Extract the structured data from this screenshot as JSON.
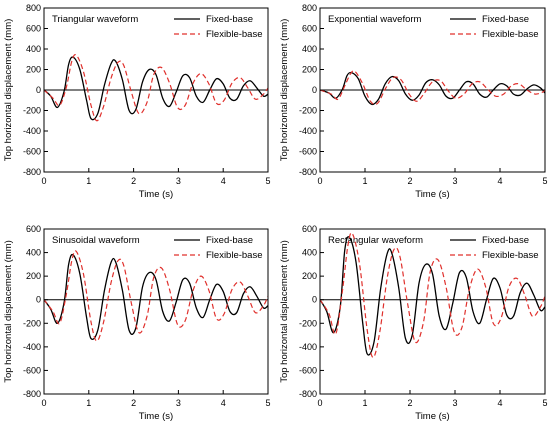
{
  "chart_data": [
    {
      "type": "line",
      "panel": "top-left",
      "annotation": "Triangular waveform",
      "xlabel": "Time (s)",
      "ylabel": "Top horizontal displacement (mm)",
      "xlim": [
        0,
        5
      ],
      "ylim": [
        -800,
        800
      ],
      "xticks": [
        0,
        1,
        2,
        3,
        4,
        5
      ],
      "yticks": [
        -800,
        -600,
        -400,
        -200,
        0,
        200,
        400,
        600,
        800
      ],
      "legend_position": "top-right",
      "series": [
        {
          "name": "Fixed-base",
          "style": "solid",
          "color": "#000000",
          "x": [
            0,
            0.15,
            0.3,
            0.45,
            0.55,
            0.65,
            0.8,
            0.95,
            1.05,
            1.2,
            1.35,
            1.5,
            1.6,
            1.75,
            1.9,
            2.05,
            2.2,
            2.35,
            2.5,
            2.65,
            2.8,
            2.95,
            3.1,
            3.25,
            3.4,
            3.55,
            3.7,
            3.85,
            4.0,
            4.15,
            4.3,
            4.45,
            4.6,
            4.75,
            4.9,
            5.0
          ],
          "y": [
            0,
            -60,
            -170,
            -10,
            250,
            320,
            200,
            -100,
            -280,
            -230,
            50,
            260,
            280,
            100,
            -200,
            -190,
            80,
            200,
            150,
            -80,
            -160,
            -20,
            140,
            120,
            -60,
            -120,
            0,
            110,
            60,
            -80,
            -90,
            40,
            90,
            20,
            -60,
            -40
          ]
        },
        {
          "name": "Flexible-base",
          "style": "dashed",
          "color": "#e0302c",
          "x": [
            0,
            0.2,
            0.35,
            0.5,
            0.62,
            0.72,
            0.88,
            1.05,
            1.18,
            1.33,
            1.5,
            1.65,
            1.78,
            1.95,
            2.12,
            2.3,
            2.45,
            2.62,
            2.8,
            2.98,
            3.15,
            3.32,
            3.5,
            3.68,
            3.85,
            4.02,
            4.2,
            4.38,
            4.55,
            4.72,
            4.9,
            5.0
          ],
          "y": [
            0,
            -80,
            -150,
            30,
            280,
            340,
            180,
            -150,
            -300,
            -160,
            120,
            270,
            240,
            -20,
            -230,
            -120,
            150,
            220,
            70,
            -170,
            -150,
            60,
            160,
            60,
            -130,
            -100,
            70,
            120,
            20,
            -90,
            -40,
            20
          ]
        }
      ]
    },
    {
      "type": "line",
      "panel": "top-right",
      "annotation": "Exponential waveform",
      "xlabel": "Time (s)",
      "ylabel": "Top horizontal displacement (mm)",
      "xlim": [
        0,
        5
      ],
      "ylim": [
        -800,
        800
      ],
      "xticks": [
        0,
        1,
        2,
        3,
        4,
        5
      ],
      "yticks": [
        -800,
        -600,
        -400,
        -200,
        0,
        200,
        400,
        600,
        800
      ],
      "legend_position": "top-right",
      "series": [
        {
          "name": "Fixed-base",
          "style": "solid",
          "color": "#000000",
          "x": [
            0,
            0.2,
            0.35,
            0.5,
            0.6,
            0.7,
            0.85,
            1.0,
            1.15,
            1.3,
            1.45,
            1.6,
            1.75,
            1.9,
            2.05,
            2.2,
            2.35,
            2.5,
            2.65,
            2.8,
            2.95,
            3.1,
            3.25,
            3.4,
            3.55,
            3.7,
            3.85,
            4.0,
            4.15,
            4.3,
            4.45,
            4.6,
            4.75,
            4.9,
            5.0
          ],
          "y": [
            0,
            -30,
            -80,
            10,
            140,
            170,
            110,
            -60,
            -140,
            -90,
            60,
            130,
            90,
            -40,
            -100,
            -50,
            70,
            100,
            50,
            -60,
            -80,
            0,
            80,
            60,
            -40,
            -70,
            0,
            60,
            40,
            -40,
            -50,
            10,
            50,
            20,
            -30
          ]
        },
        {
          "name": "Flexible-base",
          "style": "dashed",
          "color": "#e0302c",
          "x": [
            0,
            0.25,
            0.4,
            0.55,
            0.68,
            0.78,
            0.95,
            1.12,
            1.28,
            1.45,
            1.62,
            1.8,
            1.98,
            2.15,
            2.32,
            2.5,
            2.68,
            2.85,
            3.02,
            3.2,
            3.38,
            3.55,
            3.72,
            3.9,
            4.08,
            4.25,
            4.42,
            4.6,
            4.78,
            4.95,
            5.0
          ],
          "y": [
            0,
            -40,
            -90,
            40,
            160,
            180,
            60,
            -110,
            -130,
            10,
            120,
            100,
            -40,
            -110,
            -30,
            80,
            90,
            -10,
            -80,
            -40,
            60,
            80,
            10,
            -60,
            -40,
            40,
            60,
            0,
            -40,
            -20,
            0
          ]
        }
      ]
    },
    {
      "type": "line",
      "panel": "bottom-left",
      "annotation": "Sinusoidal waveform",
      "xlabel": "Time (s)",
      "ylabel": "Top horizontal displacement (mm)",
      "xlim": [
        0,
        5
      ],
      "ylim": [
        -800,
        600
      ],
      "xticks": [
        0,
        1,
        2,
        3,
        4,
        5
      ],
      "yticks": [
        -800,
        -600,
        -400,
        -200,
        0,
        200,
        400,
        600
      ],
      "legend_position": "top-right",
      "series": [
        {
          "name": "Fixed-base",
          "style": "solid",
          "color": "#000000",
          "x": [
            0,
            0.15,
            0.3,
            0.45,
            0.55,
            0.65,
            0.8,
            0.95,
            1.05,
            1.2,
            1.35,
            1.5,
            1.6,
            1.75,
            1.9,
            2.05,
            2.2,
            2.35,
            2.5,
            2.65,
            2.8,
            2.95,
            3.1,
            3.25,
            3.4,
            3.55,
            3.7,
            3.85,
            4.0,
            4.15,
            4.3,
            4.45,
            4.6,
            4.75,
            4.9,
            5.0
          ],
          "y": [
            0,
            -80,
            -200,
            -20,
            300,
            380,
            220,
            -150,
            -330,
            -260,
            80,
            320,
            320,
            80,
            -260,
            -240,
            110,
            230,
            170,
            -100,
            -180,
            -20,
            170,
            140,
            -70,
            -150,
            0,
            130,
            70,
            -100,
            -110,
            50,
            110,
            30,
            -70,
            -50
          ]
        },
        {
          "name": "Flexible-base",
          "style": "dashed",
          "color": "#e0302c",
          "x": [
            0,
            0.2,
            0.35,
            0.5,
            0.62,
            0.72,
            0.88,
            1.05,
            1.18,
            1.33,
            1.5,
            1.65,
            1.78,
            1.95,
            2.12,
            2.3,
            2.45,
            2.62,
            2.8,
            2.98,
            3.15,
            3.32,
            3.5,
            3.68,
            3.85,
            4.02,
            4.2,
            4.38,
            4.55,
            4.72,
            4.9,
            5.0
          ],
          "y": [
            0,
            -100,
            -200,
            50,
            330,
            410,
            220,
            -190,
            -350,
            -190,
            150,
            330,
            290,
            -30,
            -280,
            -140,
            190,
            270,
            90,
            -210,
            -180,
            70,
            200,
            80,
            -160,
            -120,
            90,
            150,
            30,
            -110,
            -50,
            30
          ]
        }
      ]
    },
    {
      "type": "line",
      "panel": "bottom-right",
      "annotation": "Rectangular waveform",
      "xlabel": "Time (s)",
      "ylabel": "Top horizontal displacement (mm)",
      "xlim": [
        0,
        5
      ],
      "ylim": [
        -800,
        600
      ],
      "xticks": [
        0,
        1,
        2,
        3,
        4,
        5
      ],
      "yticks": [
        -800,
        -600,
        -400,
        -200,
        0,
        200,
        400,
        600
      ],
      "legend_position": "top-right",
      "series": [
        {
          "name": "Fixed-base",
          "style": "solid",
          "color": "#000000",
          "x": [
            0,
            0.15,
            0.3,
            0.45,
            0.55,
            0.65,
            0.8,
            0.95,
            1.05,
            1.2,
            1.35,
            1.5,
            1.6,
            1.75,
            1.9,
            2.05,
            2.2,
            2.35,
            2.5,
            2.65,
            2.8,
            2.95,
            3.1,
            3.25,
            3.4,
            3.55,
            3.7,
            3.85,
            4.0,
            4.15,
            4.3,
            4.45,
            4.6,
            4.75,
            4.9,
            5.0
          ],
          "y": [
            0,
            -100,
            -280,
            -60,
            420,
            530,
            320,
            -200,
            -460,
            -360,
            100,
            400,
            390,
            100,
            -330,
            -300,
            140,
            300,
            220,
            -140,
            -250,
            -30,
            230,
            190,
            -100,
            -200,
            0,
            180,
            100,
            -130,
            -140,
            60,
            140,
            40,
            -90,
            -60
          ]
        },
        {
          "name": "Flexible-base",
          "style": "dashed",
          "color": "#e0302c",
          "x": [
            0,
            0.2,
            0.35,
            0.5,
            0.62,
            0.72,
            0.88,
            1.05,
            1.18,
            1.33,
            1.5,
            1.65,
            1.78,
            1.95,
            2.12,
            2.3,
            2.45,
            2.62,
            2.8,
            2.98,
            3.15,
            3.32,
            3.5,
            3.68,
            3.85,
            4.02,
            4.2,
            4.38,
            4.55,
            4.72,
            4.9,
            5.0
          ],
          "y": [
            0,
            -120,
            -290,
            80,
            460,
            560,
            300,
            -260,
            -490,
            -270,
            200,
            430,
            360,
            -40,
            -360,
            -190,
            240,
            340,
            110,
            -270,
            -240,
            90,
            260,
            110,
            -200,
            -160,
            110,
            180,
            40,
            -140,
            -60,
            30
          ]
        }
      ]
    }
  ]
}
